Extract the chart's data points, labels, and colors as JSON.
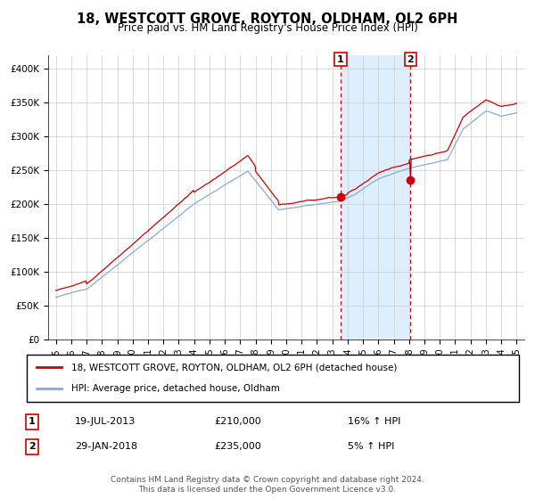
{
  "title": "18, WESTCOTT GROVE, ROYTON, OLDHAM, OL2 6PH",
  "subtitle": "Price paid vs. HM Land Registry's House Price Index (HPI)",
  "legend_line1": "18, WESTCOTT GROVE, ROYTON, OLDHAM, OL2 6PH (detached house)",
  "legend_line2": "HPI: Average price, detached house, Oldham",
  "transaction1_date": "19-JUL-2013",
  "transaction1_price": "£210,000",
  "transaction1_hpi": "16% ↑ HPI",
  "transaction2_date": "29-JAN-2018",
  "transaction2_price": "£235,000",
  "transaction2_hpi": "5% ↑ HPI",
  "footnote1": "Contains HM Land Registry data © Crown copyright and database right 2024.",
  "footnote2": "This data is licensed under the Open Government Licence v3.0.",
  "red_color": "#cc0000",
  "blue_color": "#88aadd",
  "shade_color": "#ddeeff",
  "ylim_min": 0,
  "ylim_max": 420000,
  "yticks": [
    0,
    50000,
    100000,
    150000,
    200000,
    250000,
    300000,
    350000,
    400000
  ],
  "ytick_labels": [
    "£0",
    "£50K",
    "£100K",
    "£150K",
    "£200K",
    "£250K",
    "£300K",
    "£350K",
    "£400K"
  ],
  "transaction1_x": 2013.54,
  "transaction1_y": 210000,
  "transaction2_x": 2018.08,
  "transaction2_y": 235000,
  "xlim_min": 1994.5,
  "xlim_max": 2025.5,
  "xtick_years": [
    1995,
    1996,
    1997,
    1998,
    1999,
    2000,
    2001,
    2002,
    2003,
    2004,
    2005,
    2006,
    2007,
    2008,
    2009,
    2010,
    2011,
    2012,
    2013,
    2014,
    2015,
    2016,
    2017,
    2018,
    2019,
    2020,
    2021,
    2022,
    2023,
    2024,
    2025
  ]
}
